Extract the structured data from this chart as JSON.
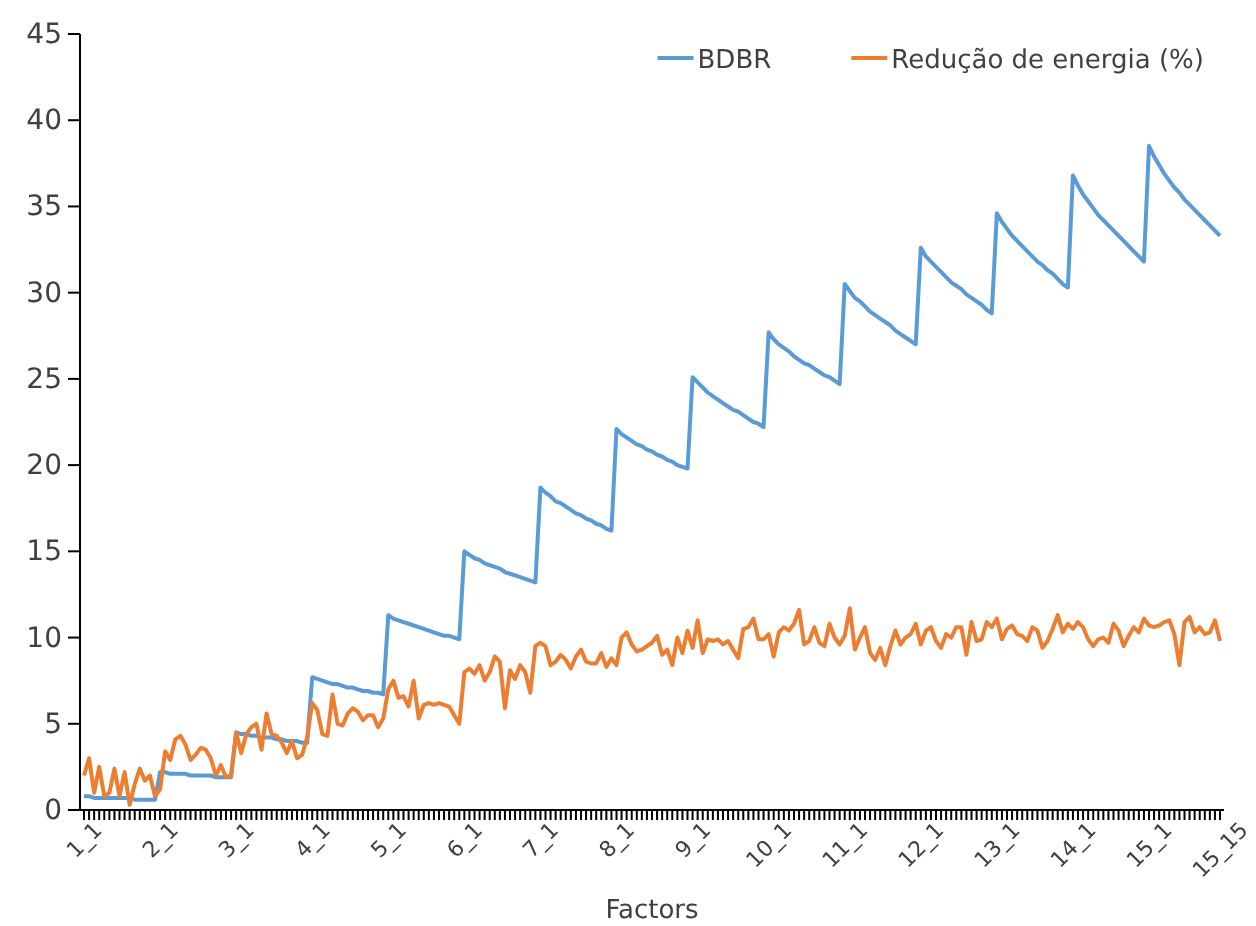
{
  "chart_data": {
    "type": "line",
    "xlabel": "Factors",
    "legend": "top right",
    "grid": false,
    "marker": "none",
    "line_style": "solid",
    "ylim": [
      0,
      45
    ],
    "yticks": [
      0,
      5,
      10,
      15,
      20,
      25,
      30,
      35,
      40,
      45
    ],
    "categories": [
      "1_1",
      null,
      null,
      null,
      null,
      null,
      null,
      null,
      null,
      null,
      null,
      null,
      null,
      null,
      null,
      "2_1",
      null,
      null,
      null,
      null,
      null,
      null,
      null,
      null,
      null,
      null,
      null,
      null,
      null,
      null,
      "3_1",
      null,
      null,
      null,
      null,
      null,
      null,
      null,
      null,
      null,
      null,
      null,
      null,
      null,
      null,
      "4_1",
      null,
      null,
      null,
      null,
      null,
      null,
      null,
      null,
      null,
      null,
      null,
      null,
      null,
      null,
      "5_1",
      null,
      null,
      null,
      null,
      null,
      null,
      null,
      null,
      null,
      null,
      null,
      null,
      null,
      null,
      "6_1",
      null,
      null,
      null,
      null,
      null,
      null,
      null,
      null,
      null,
      null,
      null,
      null,
      null,
      null,
      "7_1",
      null,
      null,
      null,
      null,
      null,
      null,
      null,
      null,
      null,
      null,
      null,
      null,
      null,
      null,
      "8_1",
      null,
      null,
      null,
      null,
      null,
      null,
      null,
      null,
      null,
      null,
      null,
      null,
      null,
      null,
      "9_1",
      null,
      null,
      null,
      null,
      null,
      null,
      null,
      null,
      null,
      null,
      null,
      null,
      null,
      null,
      "10_1",
      null,
      null,
      null,
      null,
      null,
      null,
      null,
      null,
      null,
      null,
      null,
      null,
      null,
      null,
      "11_1",
      null,
      null,
      null,
      null,
      null,
      null,
      null,
      null,
      null,
      null,
      null,
      null,
      null,
      null,
      "12_1",
      null,
      null,
      null,
      null,
      null,
      null,
      null,
      null,
      null,
      null,
      null,
      null,
      null,
      null,
      "13_1",
      null,
      null,
      null,
      null,
      null,
      null,
      null,
      null,
      null,
      null,
      null,
      null,
      null,
      null,
      "14_1",
      null,
      null,
      null,
      null,
      null,
      null,
      null,
      null,
      null,
      null,
      null,
      null,
      null,
      null,
      "15_1",
      null,
      null,
      null,
      null,
      null,
      null,
      null,
      null,
      null,
      null,
      null,
      null,
      null,
      "15_15"
    ],
    "series": [
      {
        "name": "BDBR",
        "color": "#5b9bd5",
        "values": [
          0.8,
          0.8,
          0.7,
          0.7,
          0.7,
          0.7,
          0.7,
          0.7,
          0.7,
          0.7,
          0.6,
          0.6,
          0.6,
          0.6,
          0.6,
          2.2,
          2.2,
          2.1,
          2.1,
          2.1,
          2.1,
          2.0,
          2.0,
          2.0,
          2.0,
          2.0,
          1.9,
          1.9,
          1.9,
          1.9,
          4.5,
          4.4,
          4.4,
          4.3,
          4.3,
          4.2,
          4.2,
          4.2,
          4.1,
          4.1,
          4.0,
          4.0,
          4.0,
          3.9,
          3.9,
          7.7,
          7.6,
          7.5,
          7.4,
          7.3,
          7.3,
          7.2,
          7.1,
          7.1,
          7.0,
          6.9,
          6.9,
          6.8,
          6.8,
          6.7,
          11.3,
          11.1,
          11.0,
          10.9,
          10.8,
          10.7,
          10.6,
          10.5,
          10.4,
          10.3,
          10.2,
          10.1,
          10.1,
          10.0,
          9.9,
          15.0,
          14.8,
          14.6,
          14.5,
          14.3,
          14.2,
          14.1,
          14.0,
          13.8,
          13.7,
          13.6,
          13.5,
          13.4,
          13.3,
          13.2,
          18.7,
          18.4,
          18.2,
          17.9,
          17.8,
          17.6,
          17.4,
          17.2,
          17.1,
          16.9,
          16.8,
          16.6,
          16.5,
          16.3,
          16.2,
          22.1,
          21.8,
          21.6,
          21.4,
          21.2,
          21.1,
          20.9,
          20.8,
          20.6,
          20.5,
          20.3,
          20.2,
          20.0,
          19.9,
          19.8,
          25.1,
          24.8,
          24.5,
          24.2,
          24.0,
          23.8,
          23.6,
          23.4,
          23.2,
          23.1,
          22.9,
          22.7,
          22.5,
          22.4,
          22.2,
          27.7,
          27.3,
          27.0,
          26.8,
          26.6,
          26.3,
          26.1,
          25.9,
          25.8,
          25.6,
          25.4,
          25.2,
          25.1,
          24.9,
          24.7,
          30.5,
          30.1,
          29.7,
          29.5,
          29.2,
          28.9,
          28.7,
          28.5,
          28.3,
          28.1,
          27.8,
          27.6,
          27.4,
          27.2,
          27.0,
          32.6,
          32.1,
          31.8,
          31.5,
          31.2,
          30.9,
          30.6,
          30.4,
          30.2,
          29.9,
          29.7,
          29.5,
          29.3,
          29.0,
          28.8,
          34.6,
          34.1,
          33.7,
          33.3,
          33.0,
          32.7,
          32.4,
          32.1,
          31.8,
          31.6,
          31.3,
          31.1,
          30.8,
          30.5,
          30.3,
          36.8,
          36.2,
          35.7,
          35.3,
          34.9,
          34.5,
          34.2,
          33.9,
          33.6,
          33.3,
          33.0,
          32.7,
          32.4,
          32.1,
          31.8,
          38.5,
          37.9,
          37.4,
          36.9,
          36.5,
          36.1,
          35.8,
          35.4,
          35.1,
          34.8,
          34.5,
          34.2,
          33.9,
          33.6,
          33.3
        ]
      },
      {
        "name": "Redução de energia (%)",
        "color": "#ed7d31",
        "values": [
          2.0,
          3.0,
          1.0,
          2.5,
          0.8,
          1.0,
          2.4,
          0.8,
          2.2,
          0.3,
          1.5,
          2.4,
          1.7,
          2.0,
          0.8,
          1.2,
          3.4,
          2.9,
          4.1,
          4.3,
          3.8,
          2.9,
          3.2,
          3.6,
          3.5,
          3.0,
          2.0,
          2.6,
          1.9,
          2.0,
          4.5,
          3.3,
          4.4,
          4.8,
          5.0,
          3.5,
          5.6,
          4.4,
          4.3,
          3.9,
          3.3,
          4.0,
          3.0,
          3.2,
          4.2,
          6.2,
          5.8,
          4.4,
          4.3,
          6.7,
          5.0,
          4.9,
          5.6,
          5.9,
          5.7,
          5.2,
          5.5,
          5.5,
          4.8,
          5.3,
          7.0,
          7.5,
          6.5,
          6.6,
          6.0,
          7.5,
          5.3,
          6.1,
          6.2,
          6.1,
          6.2,
          6.1,
          6.0,
          5.5,
          5.0,
          8.0,
          8.2,
          7.9,
          8.4,
          7.5,
          8.0,
          8.9,
          8.6,
          5.9,
          8.1,
          7.6,
          8.4,
          8.0,
          6.8,
          9.5,
          9.7,
          9.5,
          8.4,
          8.6,
          9.0,
          8.7,
          8.2,
          8.9,
          9.3,
          8.6,
          8.5,
          8.5,
          9.1,
          8.3,
          8.8,
          8.4,
          10.0,
          10.3,
          9.6,
          9.2,
          9.3,
          9.5,
          9.7,
          10.1,
          9.0,
          9.3,
          8.4,
          10.0,
          9.1,
          10.4,
          9.4,
          11.0,
          9.1,
          9.9,
          9.8,
          9.9,
          9.6,
          9.8,
          9.3,
          8.8,
          10.5,
          10.6,
          11.1,
          9.9,
          9.9,
          10.2,
          8.9,
          10.3,
          10.6,
          10.4,
          10.8,
          11.6,
          9.6,
          9.8,
          10.6,
          9.7,
          9.5,
          10.8,
          10.0,
          9.6,
          10.1,
          11.7,
          9.3,
          10.0,
          10.6,
          9.1,
          8.7,
          9.4,
          8.4,
          9.5,
          10.4,
          9.6,
          10.0,
          10.2,
          10.8,
          9.6,
          10.4,
          10.6,
          9.8,
          9.4,
          10.2,
          10.0,
          10.6,
          10.6,
          9.0,
          10.9,
          9.8,
          9.9,
          10.9,
          10.6,
          11.1,
          9.9,
          10.5,
          10.7,
          10.2,
          10.1,
          9.8,
          10.6,
          10.4,
          9.4,
          9.8,
          10.5,
          11.3,
          10.3,
          10.8,
          10.5,
          10.9,
          10.6,
          9.9,
          9.5,
          9.9,
          10.0,
          9.7,
          10.8,
          10.4,
          9.5,
          10.1,
          10.6,
          10.3,
          11.1,
          10.7,
          10.6,
          10.7,
          10.9,
          11.0,
          10.2,
          8.4,
          10.9,
          11.2,
          10.3,
          10.6,
          10.2,
          10.3,
          11.0,
          9.8
        ]
      }
    ]
  }
}
